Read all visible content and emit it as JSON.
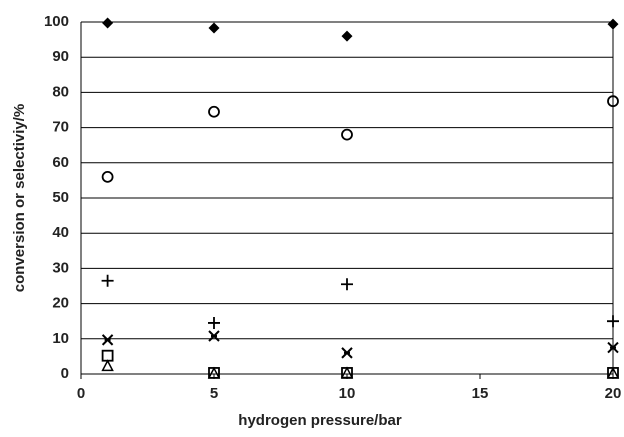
{
  "chart_data": {
    "type": "scatter",
    "x_label": "hydrogen pressure/bar",
    "y_label": "conversion or selectiviy/%",
    "x": [
      1,
      5,
      10,
      20
    ],
    "series": [
      {
        "marker": "diamond",
        "color": "#000000",
        "values": [
          99.7,
          98.3,
          96,
          99.4
        ]
      },
      {
        "marker": "circle",
        "color": "#000000",
        "values": [
          56,
          74.5,
          68,
          77.5
        ]
      },
      {
        "marker": "plus",
        "color": "#000000",
        "values": [
          26.5,
          14.5,
          25.5,
          15
        ]
      },
      {
        "marker": "cross",
        "color": "#000000",
        "values": [
          9.7,
          10.8,
          6,
          7.5
        ]
      },
      {
        "marker": "square",
        "color": "#000000",
        "values": [
          5.2,
          0.3,
          0.3,
          0.3
        ]
      },
      {
        "marker": "triangle",
        "color": "#000000",
        "values": [
          2.3,
          0.2,
          0.3,
          0.2
        ]
      }
    ],
    "xlim": [
      0,
      20
    ],
    "xticks": [
      0,
      5,
      10,
      15,
      20
    ],
    "ylim": [
      0,
      100
    ],
    "yticks": [
      0,
      10,
      20,
      30,
      40,
      50,
      60,
      70,
      80,
      90,
      100
    ],
    "grid": true
  }
}
